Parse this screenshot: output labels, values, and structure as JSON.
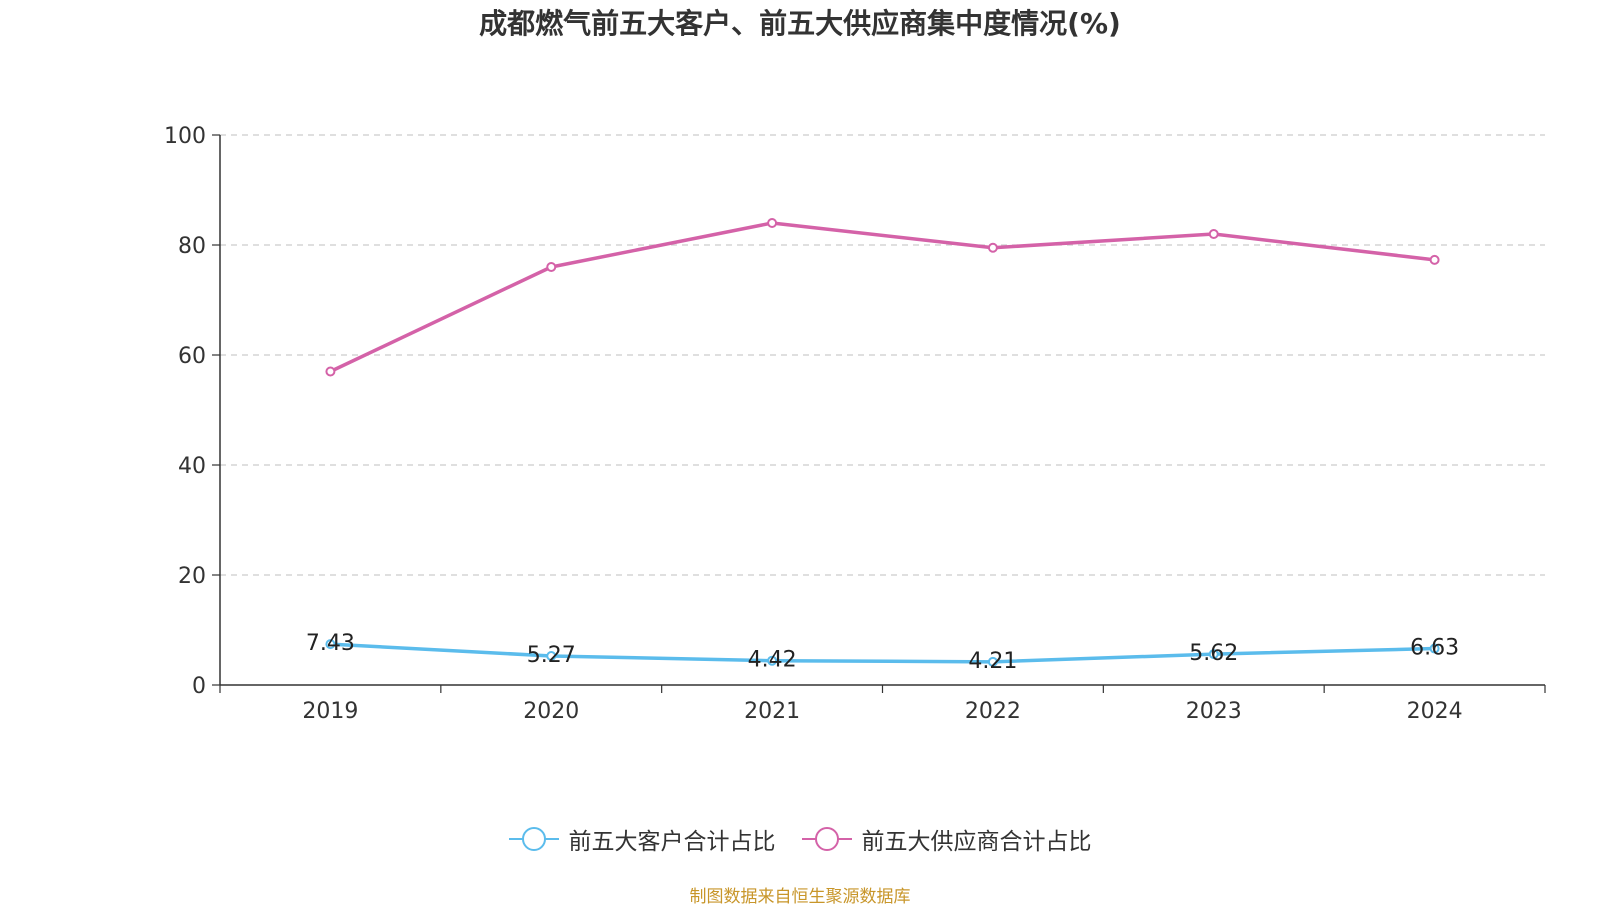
{
  "chart_data": {
    "type": "line",
    "title": "成都燃气前五大客户、前五大供应商集中度情况(%)",
    "xlabel": "",
    "ylabel": "",
    "categories": [
      "2019",
      "2020",
      "2021",
      "2022",
      "2023",
      "2024"
    ],
    "ylim": [
      0,
      100
    ],
    "yticks": [
      0,
      20,
      40,
      60,
      80,
      100
    ],
    "grid": "horizontal dashed",
    "legend_position": "bottom-center",
    "series": [
      {
        "name": "前五大客户合计占比",
        "color": "#5bbcec",
        "values": [
          7.43,
          5.27,
          4.42,
          4.21,
          5.62,
          6.63
        ],
        "data_labels": [
          "7.43",
          "5.27",
          "4.42",
          "4.21",
          "5.62",
          "6.63"
        ]
      },
      {
        "name": "前五大供应商合计占比",
        "color": "#d462a8",
        "values": [
          57.0,
          76.0,
          84.0,
          79.5,
          82.0,
          77.3
        ],
        "data_labels": []
      }
    ]
  },
  "source_note": "制图数据来自恒生聚源数据库"
}
